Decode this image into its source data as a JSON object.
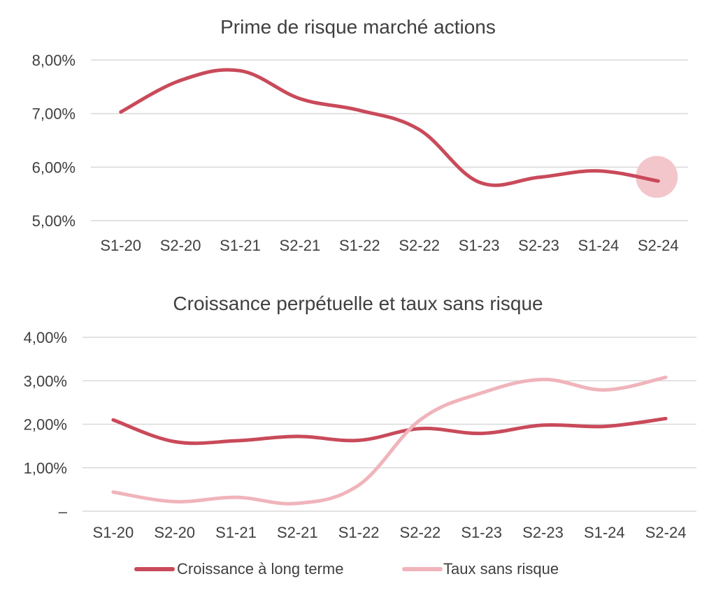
{
  "colors": {
    "primary": "#c94a5a",
    "light": "#f0b4bb",
    "highlight": "#f3c6cb",
    "grid": "#d9d9d9",
    "text": "#404040"
  },
  "chart_data": [
    {
      "type": "line",
      "title": "Prime de risque marché actions",
      "categories": [
        "S1-20",
        "S2-20",
        "S1-21",
        "S2-21",
        "S1-22",
        "S2-22",
        "S1-23",
        "S2-23",
        "S1-24",
        "S2-24"
      ],
      "yticks": [
        "5,00%",
        "6,00%",
        "7,00%",
        "8,00%"
      ],
      "ylim": [
        5,
        8
      ],
      "grid": true,
      "highlight_point_index": 9,
      "series": [
        {
          "values": [
            7.03,
            7.62,
            7.8,
            7.28,
            7.06,
            6.7,
            5.72,
            5.81,
            5.93,
            5.74
          ]
        }
      ]
    },
    {
      "type": "line",
      "title": "Croissance perpétuelle et taux sans risque",
      "categories": [
        "S1-20",
        "S2-20",
        "S1-21",
        "S2-21",
        "S1-22",
        "S2-22",
        "S1-23",
        "S2-23",
        "S1-24",
        "S2-24"
      ],
      "yticks": [
        "–",
        "1,00%",
        "2,00%",
        "3,00%",
        "4,00%"
      ],
      "ylim": [
        0,
        4
      ],
      "grid": true,
      "legend": "bottom",
      "series": [
        {
          "name": "Croissance à long terme",
          "values": [
            2.1,
            1.6,
            1.62,
            1.72,
            1.63,
            1.9,
            1.79,
            1.98,
            1.95,
            2.13
          ]
        },
        {
          "name": "Taux sans risque",
          "values": [
            0.44,
            0.22,
            0.32,
            0.18,
            0.6,
            2.1,
            2.72,
            3.03,
            2.79,
            3.08
          ]
        }
      ]
    }
  ]
}
